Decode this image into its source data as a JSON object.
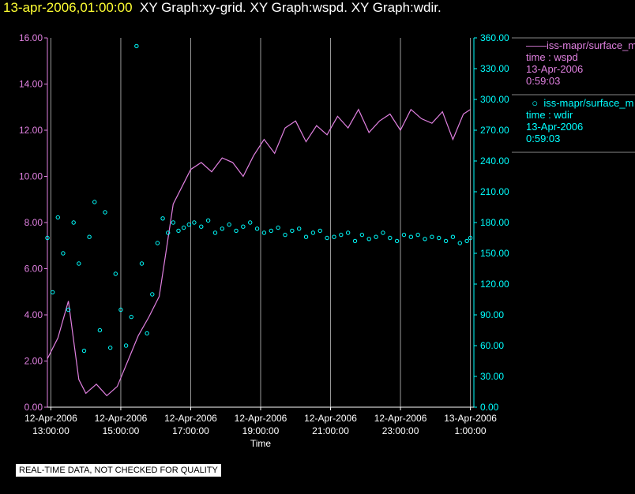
{
  "header": {
    "timestamp": "13-apr-2006,01:00:00",
    "graphs": "XY Graph:xy-grid.  XY Graph:wspd.  XY Graph:wdir."
  },
  "legend": [
    {
      "symbol": "line",
      "label": "iss-mapr/surface_m",
      "field": "time : wspd",
      "date": "13-Apr-2006",
      "time": "0:59:03",
      "color": "#e080e0"
    },
    {
      "symbol": "circle",
      "label": "iss-mapr/surface_m",
      "field": "time : wdir",
      "date": "13-Apr-2006",
      "time": "0:59:03",
      "color": "#00ffff"
    }
  ],
  "footer": "REAL-TIME DATA, NOT CHECKED FOR QUALITY",
  "chart_data": {
    "type": "line",
    "xlabel": "Time",
    "x_range_hours": [
      12.9,
      25.1
    ],
    "x_ticks": [
      {
        "h": 13,
        "date": "12-Apr-2006",
        "time": "13:00:00"
      },
      {
        "h": 15,
        "date": "12-Apr-2006",
        "time": "15:00:00"
      },
      {
        "h": 17,
        "date": "12-Apr-2006",
        "time": "17:00:00"
      },
      {
        "h": 19,
        "date": "12-Apr-2006",
        "time": "19:00:00"
      },
      {
        "h": 21,
        "date": "12-Apr-2006",
        "time": "21:00:00"
      },
      {
        "h": 23,
        "date": "12-Apr-2006",
        "time": "23:00:00"
      },
      {
        "h": 25,
        "date": "13-Apr-2006",
        "time": "1:00:00"
      }
    ],
    "y_left": {
      "range": [
        0,
        16
      ],
      "ticks": [
        "0.00",
        "2.00",
        "4.00",
        "6.00",
        "8.00",
        "10.00",
        "12.00",
        "14.00",
        "16.00"
      ],
      "color": "#e080e0"
    },
    "y_right": {
      "range": [
        0,
        360
      ],
      "ticks": [
        "0.00",
        "30.00",
        "60.00",
        "90.00",
        "120.00",
        "150.00",
        "180.00",
        "210.00",
        "240.00",
        "270.00",
        "300.00",
        "330.00",
        "360.00"
      ],
      "color": "#00ffff"
    },
    "grid": "vertical",
    "series": [
      {
        "name": "wspd",
        "axis": "left",
        "style": "line",
        "color": "#e080e0",
        "x": [
          12.9,
          13.2,
          13.5,
          13.8,
          14.0,
          14.3,
          14.6,
          14.9,
          15.2,
          15.5,
          15.8,
          16.1,
          16.3,
          16.5,
          16.8,
          17.0,
          17.3,
          17.6,
          17.9,
          18.2,
          18.5,
          18.8,
          19.1,
          19.4,
          19.7,
          20.0,
          20.3,
          20.6,
          20.9,
          21.2,
          21.5,
          21.8,
          22.1,
          22.4,
          22.7,
          23.0,
          23.3,
          23.6,
          23.9,
          24.2,
          24.5,
          24.8,
          25.0
        ],
        "y": [
          2.1,
          3.0,
          4.6,
          1.2,
          0.6,
          1.0,
          0.5,
          0.9,
          2.0,
          3.1,
          3.9,
          4.8,
          6.8,
          8.8,
          9.7,
          10.3,
          10.6,
          10.2,
          10.8,
          10.6,
          10.0,
          10.9,
          11.6,
          11.0,
          12.1,
          12.4,
          11.5,
          12.2,
          11.8,
          12.6,
          12.1,
          12.9,
          11.9,
          12.4,
          12.7,
          12.0,
          12.9,
          12.5,
          12.3,
          12.8,
          11.6,
          12.7,
          12.9
        ]
      },
      {
        "name": "wdir",
        "axis": "right",
        "style": "scatter",
        "color": "#00ffff",
        "x": [
          12.9,
          13.05,
          13.2,
          13.35,
          13.5,
          13.65,
          13.8,
          13.95,
          14.1,
          14.25,
          14.4,
          14.55,
          14.7,
          14.85,
          15.0,
          15.15,
          15.3,
          15.45,
          15.6,
          15.75,
          15.9,
          16.05,
          16.2,
          16.35,
          16.5,
          16.65,
          16.8,
          16.95,
          17.1,
          17.3,
          17.5,
          17.7,
          17.9,
          18.1,
          18.3,
          18.5,
          18.7,
          18.9,
          19.1,
          19.3,
          19.5,
          19.7,
          19.9,
          20.1,
          20.3,
          20.5,
          20.7,
          20.9,
          21.1,
          21.3,
          21.5,
          21.7,
          21.9,
          22.1,
          22.3,
          22.5,
          22.7,
          22.9,
          23.1,
          23.3,
          23.5,
          23.7,
          23.9,
          24.1,
          24.3,
          24.5,
          24.7,
          24.9,
          25.0
        ],
        "y": [
          165,
          112,
          185,
          150,
          95,
          180,
          140,
          55,
          166,
          200,
          75,
          190,
          58,
          130,
          95,
          60,
          88,
          352,
          140,
          72,
          110,
          160,
          184,
          170,
          180,
          172,
          175,
          178,
          180,
          176,
          182,
          170,
          174,
          178,
          172,
          176,
          180,
          174,
          170,
          172,
          175,
          168,
          172,
          174,
          166,
          170,
          172,
          165,
          166,
          168,
          170,
          162,
          168,
          164,
          166,
          170,
          165,
          162,
          168,
          166,
          168,
          164,
          166,
          165,
          162,
          166,
          160,
          162,
          165
        ]
      }
    ]
  }
}
